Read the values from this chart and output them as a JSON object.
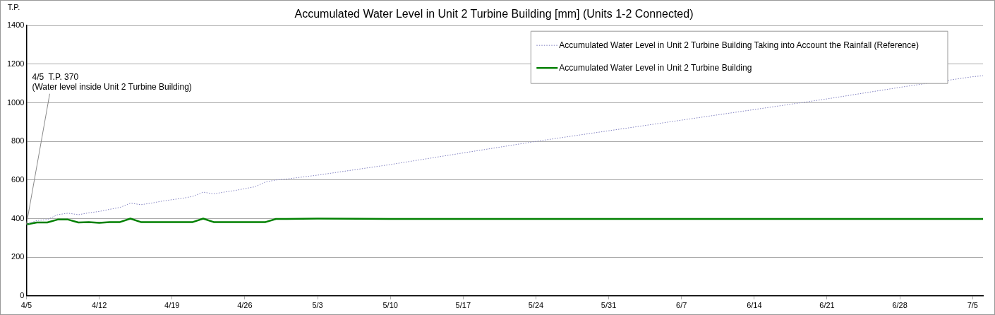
{
  "chart_data": {
    "type": "line",
    "title": "Accumulated Water Level in Unit 2 Turbine Building [mm] (Units 1-2 Connected)",
    "ylabel": "T.P.",
    "x": [
      "--04-05",
      "--04-06",
      "--04-07",
      "--04-08",
      "--04-09",
      "--04-10",
      "--04-11",
      "--04-12",
      "--04-13",
      "--04-14",
      "--04-15",
      "--04-16",
      "--04-17",
      "--04-18",
      "--04-19",
      "--04-20",
      "--04-21",
      "--04-22",
      "--04-23",
      "--04-24",
      "--04-25",
      "--04-26",
      "--04-27",
      "--04-28",
      "--04-29",
      "--04-30",
      "--05-03",
      "--05-10",
      "--05-17",
      "--05-24",
      "--05-31",
      "--06-07",
      "--06-14",
      "--06-21",
      "--06-28",
      "--07-05",
      "--07-06"
    ],
    "xlim": [
      "--04-05",
      "--07-06"
    ],
    "xticks": [
      {
        "value": "--04-05",
        "label": "4/5"
      },
      {
        "value": "--04-12",
        "label": "4/12"
      },
      {
        "value": "--04-19",
        "label": "4/19"
      },
      {
        "value": "--04-26",
        "label": "4/26"
      },
      {
        "value": "--05-03",
        "label": "5/3"
      },
      {
        "value": "--05-10",
        "label": "5/10"
      },
      {
        "value": "--05-17",
        "label": "5/17"
      },
      {
        "value": "--05-24",
        "label": "5/24"
      },
      {
        "value": "--05-31",
        "label": "5/31"
      },
      {
        "value": "--06-07",
        "label": "6/7"
      },
      {
        "value": "--06-14",
        "label": "6/14"
      },
      {
        "value": "--06-21",
        "label": "6/21"
      },
      {
        "value": "--06-28",
        "label": "6/28"
      },
      {
        "value": "--07-05",
        "label": "7/5"
      }
    ],
    "ylim": [
      0,
      1400
    ],
    "yticks": [
      0,
      200,
      400,
      600,
      800,
      1000,
      1200,
      1400
    ],
    "grid": "y",
    "legend": "top right",
    "marker": "none",
    "series": [
      {
        "name": "Accumulated Water Level in Unit 2 Turbine Building Taking into Account the Rainfall (Reference)",
        "color": "#8080c0",
        "line_style": "dotted",
        "values": [
          370,
          390,
          395,
          420,
          428,
          420,
          430,
          437,
          448,
          458,
          480,
          472,
          480,
          490,
          498,
          505,
          515,
          537,
          528,
          537,
          545,
          555,
          565,
          590,
          600,
          605,
          625,
          680,
          740,
          800,
          855,
          910,
          965,
          1020,
          1080,
          1135,
          1140
        ]
      },
      {
        "name": "Accumulated Water Level in Unit 2 Turbine Building",
        "color": "#008000",
        "line_style": "solid",
        "values": [
          370,
          380,
          380,
          395,
          395,
          380,
          382,
          378,
          382,
          382,
          400,
          382,
          382,
          382,
          382,
          382,
          382,
          400,
          382,
          382,
          382,
          382,
          382,
          382,
          398,
          398,
          400,
          398,
          398,
          398,
          398,
          398,
          398,
          398,
          398,
          398,
          398
        ]
      }
    ],
    "annotations": [
      {
        "text": "4/5  T.P. 370\n(Water level inside Unit 2 Turbine Building)",
        "x": "--04-05",
        "y": 370
      }
    ]
  }
}
